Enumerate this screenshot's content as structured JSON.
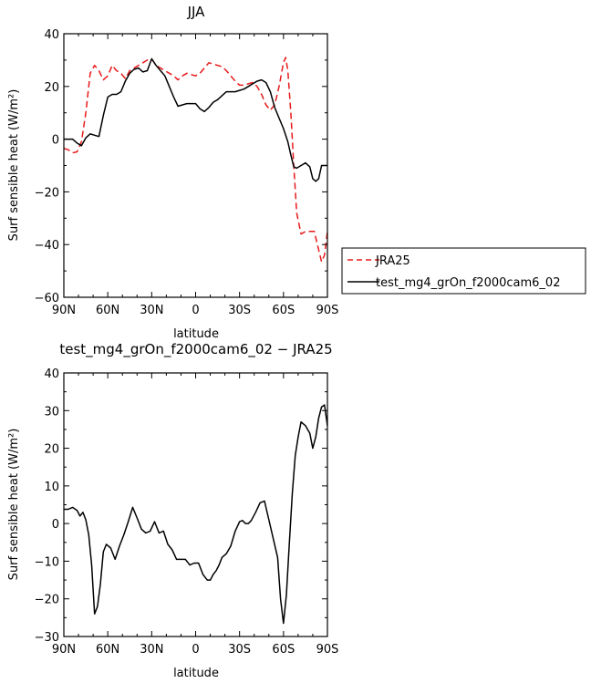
{
  "chart_data": [
    {
      "type": "line",
      "title": "JJA",
      "xlabel": "latitude",
      "ylabel": "Surf sensible heat (W/m²)",
      "xlim": [
        90,
        -90
      ],
      "ylim": [
        -60,
        40
      ],
      "x_tick_values": [
        90,
        60,
        30,
        0,
        -30,
        -60,
        -90
      ],
      "x_ticks": [
        "90N",
        "60N",
        "30N",
        "0",
        "30S",
        "60S",
        "90S"
      ],
      "y_ticks": [
        "−60",
        "−40",
        "−20",
        "0",
        "20",
        "40"
      ],
      "y_tick_values": [
        -60,
        -40,
        -20,
        0,
        20,
        40
      ],
      "legend_position": "right",
      "series": [
        {
          "name": "JRA25",
          "color": "#e8191a",
          "style": "dashed",
          "points": [
            [
              90,
              -3.5
            ],
            [
              87,
              -4
            ],
            [
              84,
              -5.2
            ],
            [
              81,
              -4.8
            ],
            [
              78,
              -1
            ],
            [
              75,
              10
            ],
            [
              72,
              25
            ],
            [
              69,
              28
            ],
            [
              66,
              26
            ],
            [
              63,
              22.5
            ],
            [
              60,
              24
            ],
            [
              57,
              28
            ],
            [
              54,
              26
            ],
            [
              51,
              25
            ],
            [
              48,
              23
            ],
            [
              45,
              26
            ],
            [
              42,
              27
            ],
            [
              39,
              28
            ],
            [
              36,
              29
            ],
            [
              33,
              30
            ],
            [
              30,
              30.5
            ],
            [
              27,
              28
            ],
            [
              24,
              27
            ],
            [
              21,
              26
            ],
            [
              18,
              25
            ],
            [
              15,
              24
            ],
            [
              12,
              22.5
            ],
            [
              9,
              24
            ],
            [
              6,
              25
            ],
            [
              3,
              24.5
            ],
            [
              0,
              24
            ],
            [
              -3,
              25
            ],
            [
              -6,
              27
            ],
            [
              -9,
              29
            ],
            [
              -12,
              28.5
            ],
            [
              -15,
              28
            ],
            [
              -18,
              27.5
            ],
            [
              -21,
              26
            ],
            [
              -24,
              24
            ],
            [
              -27,
              22
            ],
            [
              -30,
              20.5
            ],
            [
              -33,
              20.5
            ],
            [
              -36,
              21
            ],
            [
              -39,
              21.5
            ],
            [
              -42,
              20
            ],
            [
              -45,
              17
            ],
            [
              -48,
              13
            ],
            [
              -51,
              11
            ],
            [
              -54,
              13
            ],
            [
              -57,
              20
            ],
            [
              -60,
              29
            ],
            [
              -61.5,
              31
            ],
            [
              -63,
              26
            ],
            [
              -65,
              10
            ],
            [
              -67,
              -10
            ],
            [
              -69,
              -28
            ],
            [
              -72,
              -36
            ],
            [
              -75,
              -35
            ],
            [
              -78,
              -35
            ],
            [
              -81,
              -35
            ],
            [
              -84,
              -42
            ],
            [
              -86,
              -46.5
            ],
            [
              -88,
              -44
            ],
            [
              -90,
              -35
            ]
          ]
        },
        {
          "name": "test_mg4_grOn_f2000cam6_02",
          "color": "#000000",
          "style": "solid",
          "points": [
            [
              90,
              0
            ],
            [
              87,
              0
            ],
            [
              84,
              0
            ],
            [
              81,
              -1.5
            ],
            [
              78,
              -2.5
            ],
            [
              75,
              0.5
            ],
            [
              72,
              2
            ],
            [
              69,
              1.5
            ],
            [
              66,
              1
            ],
            [
              63,
              9
            ],
            [
              60,
              16
            ],
            [
              57,
              17
            ],
            [
              54,
              17
            ],
            [
              51,
              18
            ],
            [
              48,
              22
            ],
            [
              45,
              25
            ],
            [
              42,
              26.5
            ],
            [
              39,
              27
            ],
            [
              36,
              25.5
            ],
            [
              33,
              26
            ],
            [
              30,
              30.5
            ],
            [
              27,
              28
            ],
            [
              24,
              26
            ],
            [
              21,
              24
            ],
            [
              18,
              20
            ],
            [
              15,
              16
            ],
            [
              12,
              12.5
            ],
            [
              9,
              13
            ],
            [
              6,
              13.5
            ],
            [
              3,
              13.5
            ],
            [
              0,
              13.5
            ],
            [
              -3,
              11.5
            ],
            [
              -6,
              10.5
            ],
            [
              -9,
              12
            ],
            [
              -12,
              14
            ],
            [
              -15,
              15
            ],
            [
              -18,
              16.5
            ],
            [
              -21,
              18
            ],
            [
              -24,
              18
            ],
            [
              -27,
              18
            ],
            [
              -30,
              18.5
            ],
            [
              -33,
              19
            ],
            [
              -36,
              20
            ],
            [
              -39,
              21
            ],
            [
              -42,
              22
            ],
            [
              -45,
              22.5
            ],
            [
              -48,
              21.5
            ],
            [
              -51,
              18
            ],
            [
              -54,
              12
            ],
            [
              -57,
              8
            ],
            [
              -60,
              4
            ],
            [
              -63,
              -1
            ],
            [
              -65,
              -6
            ],
            [
              -67,
              -10.5
            ],
            [
              -69,
              -11
            ],
            [
              -72,
              -10
            ],
            [
              -75,
              -9
            ],
            [
              -78,
              -10.5
            ],
            [
              -80,
              -15
            ],
            [
              -82,
              -16
            ],
            [
              -84,
              -15
            ],
            [
              -86,
              -10
            ],
            [
              -90,
              -10
            ]
          ]
        }
      ]
    },
    {
      "type": "line",
      "title": "test_mg4_grOn_f2000cam6_02 − JRA25",
      "xlabel": "latitude",
      "ylabel": "Surf sensible heat (W/m²)",
      "xlim": [
        90,
        -90
      ],
      "ylim": [
        -30,
        40
      ],
      "x_tick_values": [
        90,
        60,
        30,
        0,
        -30,
        -60,
        -90
      ],
      "x_ticks": [
        "90N",
        "60N",
        "30N",
        "0",
        "30S",
        "60S",
        "90S"
      ],
      "y_ticks": [
        "−30",
        "−20",
        "−10",
        "0",
        "10",
        "20",
        "30",
        "40"
      ],
      "y_tick_values": [
        -30,
        -20,
        -10,
        0,
        10,
        20,
        30,
        40
      ],
      "series": [
        {
          "color": "#000000",
          "style": "solid",
          "points": [
            [
              90,
              3.8
            ],
            [
              87,
              3.8
            ],
            [
              84,
              4.3
            ],
            [
              81,
              3.5
            ],
            [
              79,
              2
            ],
            [
              77,
              3
            ],
            [
              75,
              1
            ],
            [
              73,
              -3
            ],
            [
              71,
              -11
            ],
            [
              69,
              -24
            ],
            [
              67,
              -22
            ],
            [
              65,
              -16
            ],
            [
              63,
              -7.5
            ],
            [
              61,
              -5.5
            ],
            [
              58,
              -6.5
            ],
            [
              55,
              -9.5
            ],
            [
              52,
              -6
            ],
            [
              49,
              -3
            ],
            [
              46,
              0.5
            ],
            [
              43,
              4.3
            ],
            [
              40,
              1.5
            ],
            [
              37,
              -1.5
            ],
            [
              34,
              -2.5
            ],
            [
              31,
              -2
            ],
            [
              28,
              0.5
            ],
            [
              25,
              -2.5
            ],
            [
              22,
              -2
            ],
            [
              19,
              -5.5
            ],
            [
              16,
              -7
            ],
            [
              13,
              -9.5
            ],
            [
              10,
              -9.5
            ],
            [
              7,
              -9.5
            ],
            [
              4,
              -11
            ],
            [
              1,
              -10.5
            ],
            [
              -2,
              -10.5
            ],
            [
              -5,
              -13.5
            ],
            [
              -8,
              -15
            ],
            [
              -10,
              -15
            ],
            [
              -12,
              -13.5
            ],
            [
              -14,
              -12.5
            ],
            [
              -16,
              -11
            ],
            [
              -18,
              -9
            ],
            [
              -21,
              -8
            ],
            [
              -24,
              -6
            ],
            [
              -27,
              -2
            ],
            [
              -30,
              0.5
            ],
            [
              -32,
              0.8
            ],
            [
              -34,
              0
            ],
            [
              -36,
              0
            ],
            [
              -38,
              0.8
            ],
            [
              -41,
              3
            ],
            [
              -44,
              5.5
            ],
            [
              -47,
              6
            ],
            [
              -50,
              1
            ],
            [
              -53,
              -4
            ],
            [
              -56,
              -9
            ],
            [
              -58,
              -20
            ],
            [
              -60,
              -26.5
            ],
            [
              -62,
              -19
            ],
            [
              -64,
              -5
            ],
            [
              -66,
              8
            ],
            [
              -68,
              18
            ],
            [
              -70,
              23
            ],
            [
              -72,
              27
            ],
            [
              -75,
              26
            ],
            [
              -78,
              24
            ],
            [
              -80,
              20
            ],
            [
              -82,
              23
            ],
            [
              -84,
              28
            ],
            [
              -86,
              31
            ],
            [
              -88,
              31.5
            ],
            [
              -90,
              26
            ]
          ]
        }
      ]
    }
  ]
}
